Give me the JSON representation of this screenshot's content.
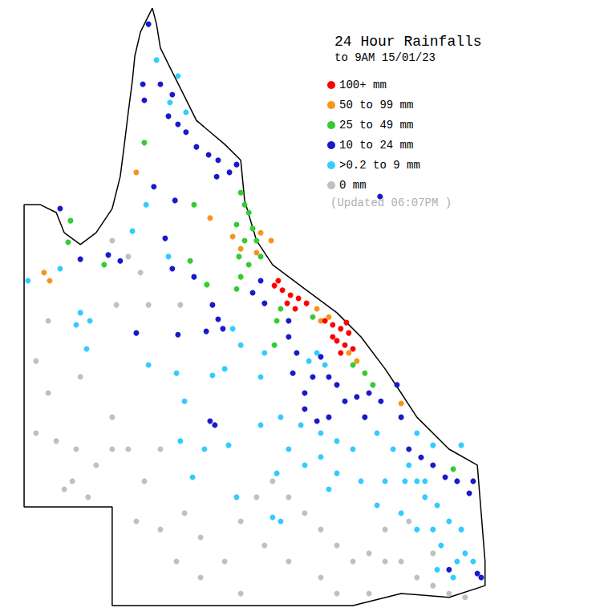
{
  "chart_data": {
    "type": "scatter",
    "title": "24 Hour Rainfalls",
    "subtitle": "to 9AM 15/01/23",
    "note": "(Updated 06:07PM )",
    "xlim": [
      137.19,
      157.89
    ],
    "ylim": [
      -29.32,
      -10.45
    ],
    "tick_labels": false,
    "grid": false,
    "outline": [
      [
        142.31,
        -10.7
      ],
      [
        141.91,
        -11.43
      ],
      [
        141.72,
        -12.17
      ],
      [
        141.64,
        -12.91
      ],
      [
        141.5,
        -13.89
      ],
      [
        141.37,
        -14.87
      ],
      [
        141.23,
        -15.86
      ],
      [
        140.96,
        -16.84
      ],
      [
        140.42,
        -17.58
      ],
      [
        139.89,
        -17.94
      ],
      [
        139.35,
        -17.58
      ],
      [
        139.08,
        -16.96
      ],
      [
        138.54,
        -16.72
      ],
      [
        138.0,
        -16.72
      ],
      [
        138.0,
        -25.98
      ],
      [
        140.96,
        -25.98
      ],
      [
        140.96,
        -29.0
      ],
      [
        149.05,
        -29.0
      ],
      [
        150.67,
        -28.63
      ],
      [
        152.28,
        -28.75
      ],
      [
        153.49,
        -28.39
      ],
      [
        153.49,
        -27.65
      ],
      [
        153.36,
        -26.17
      ],
      [
        153.23,
        -24.7
      ],
      [
        152.28,
        -24.21
      ],
      [
        151.2,
        -23.23
      ],
      [
        150.67,
        -22.49
      ],
      [
        150.13,
        -21.75
      ],
      [
        149.32,
        -20.77
      ],
      [
        148.51,
        -20.03
      ],
      [
        147.43,
        -19.3
      ],
      [
        146.35,
        -18.56
      ],
      [
        145.81,
        -17.82
      ],
      [
        145.41,
        -16.59
      ],
      [
        145.28,
        -15.36
      ],
      [
        144.74,
        -14.87
      ],
      [
        143.79,
        -14.14
      ],
      [
        143.39,
        -13.4
      ],
      [
        142.98,
        -12.66
      ],
      [
        142.58,
        -11.92
      ],
      [
        142.45,
        -11.19
      ],
      [
        142.31,
        -10.7
      ]
    ],
    "series": [
      {
        "name": "100+ mm",
        "color": "#ff0000",
        "values": [
          [
            146.41,
            -19.2
          ],
          [
            146.68,
            -19.34
          ],
          [
            146.95,
            -19.49
          ],
          [
            147.22,
            -19.59
          ],
          [
            147.49,
            -19.74
          ],
          [
            146.84,
            -19.74
          ],
          [
            147.11,
            -19.91
          ],
          [
            146.54,
            -19.05
          ],
          [
            148.11,
            -20.28
          ],
          [
            148.37,
            -20.4
          ],
          [
            148.64,
            -20.52
          ],
          [
            148.91,
            -20.65
          ],
          [
            148.51,
            -20.89
          ],
          [
            148.78,
            -21.02
          ],
          [
            149.05,
            -21.14
          ],
          [
            148.64,
            -21.26
          ],
          [
            148.37,
            -20.77
          ],
          [
            148.83,
            -20.33
          ]
        ]
      },
      {
        "name": "50 to 99 mm",
        "color": "#f7941d",
        "values": [
          [
            141.77,
            -15.73
          ],
          [
            144.25,
            -17.13
          ],
          [
            145.01,
            -17.7
          ],
          [
            145.28,
            -18.07
          ],
          [
            145.95,
            -17.58
          ],
          [
            146.3,
            -17.82
          ],
          [
            147.84,
            -19.91
          ],
          [
            147.97,
            -20.28
          ],
          [
            148.24,
            -20.16
          ],
          [
            148.91,
            -21.26
          ],
          [
            149.18,
            -21.51
          ],
          [
            150.67,
            -22.81
          ],
          [
            138.67,
            -18.8
          ],
          [
            138.86,
            -19.05
          ],
          [
            145.81,
            -18.19
          ]
        ]
      },
      {
        "name": "25 to 49 mm",
        "color": "#33cc33",
        "values": [
          [
            145.28,
            -16.35
          ],
          [
            145.41,
            -16.72
          ],
          [
            145.55,
            -16.96
          ],
          [
            145.14,
            -17.33
          ],
          [
            145.68,
            -17.45
          ],
          [
            145.81,
            -17.82
          ],
          [
            145.41,
            -17.82
          ],
          [
            145.22,
            -18.31
          ],
          [
            145.95,
            -18.31
          ],
          [
            145.55,
            -18.56
          ],
          [
            142.04,
            -14.82
          ],
          [
            143.71,
            -16.72
          ],
          [
            143.58,
            -18.44
          ],
          [
            144.14,
            -19.17
          ],
          [
            145.28,
            -18.93
          ],
          [
            145.14,
            -19.3
          ],
          [
            146.62,
            -19.91
          ],
          [
            146.49,
            -20.28
          ],
          [
            147.7,
            -20.16
          ],
          [
            149.05,
            -21.63
          ],
          [
            149.45,
            -21.88
          ],
          [
            149.72,
            -22.24
          ],
          [
            146.41,
            -21.02
          ],
          [
            152.42,
            -24.82
          ],
          [
            140.69,
            -18.56
          ],
          [
            139.56,
            -17.21
          ],
          [
            139.48,
            -17.87
          ]
        ]
      },
      {
        "name": "10 to 24 mm",
        "color": "#1a1acc",
        "values": [
          [
            141.99,
            -13.03
          ],
          [
            142.04,
            -13.52
          ],
          [
            142.58,
            -13.03
          ],
          [
            142.98,
            -13.35
          ],
          [
            142.85,
            -14.01
          ],
          [
            143.17,
            -14.26
          ],
          [
            143.44,
            -14.5
          ],
          [
            143.79,
            -14.95
          ],
          [
            144.2,
            -15.19
          ],
          [
            144.52,
            -15.36
          ],
          [
            144.47,
            -15.86
          ],
          [
            144.9,
            -15.73
          ],
          [
            145.14,
            -15.49
          ],
          [
            142.36,
            -16.17
          ],
          [
            142.74,
            -17.75
          ],
          [
            143.07,
            -16.59
          ],
          [
            143.71,
            -18.93
          ],
          [
            144.33,
            -19.79
          ],
          [
            144.52,
            -20.23
          ],
          [
            144.68,
            -20.52
          ],
          [
            144.12,
            -20.6
          ],
          [
            143.17,
            -20.7
          ],
          [
            141.77,
            -20.65
          ],
          [
            139.89,
            -18.39
          ],
          [
            140.83,
            -18.26
          ],
          [
            139.21,
            -16.84
          ],
          [
            141.23,
            -18.44
          ],
          [
            142.98,
            -18.68
          ],
          [
            146.08,
            -19.74
          ],
          [
            145.68,
            -19.42
          ],
          [
            145.95,
            -19.05
          ],
          [
            146.89,
            -20.28
          ],
          [
            146.89,
            -20.77
          ],
          [
            147.16,
            -21.26
          ],
          [
            147.03,
            -21.88
          ],
          [
            147.43,
            -22.49
          ],
          [
            147.7,
            -22.0
          ],
          [
            147.97,
            -21.38
          ],
          [
            148.24,
            -22.0
          ],
          [
            148.51,
            -22.24
          ],
          [
            148.78,
            -22.74
          ],
          [
            149.18,
            -22.61
          ],
          [
            149.59,
            -22.49
          ],
          [
            147.43,
            -22.98
          ],
          [
            147.84,
            -23.35
          ],
          [
            148.24,
            -23.23
          ],
          [
            149.45,
            -23.23
          ],
          [
            149.99,
            -22.74
          ],
          [
            150.53,
            -22.24
          ],
          [
            150.67,
            -23.23
          ],
          [
            150.93,
            -24.21
          ],
          [
            151.34,
            -24.46
          ],
          [
            151.74,
            -24.7
          ],
          [
            152.15,
            -25.07
          ],
          [
            152.55,
            -25.19
          ],
          [
            152.96,
            -25.56
          ],
          [
            153.09,
            -25.19
          ],
          [
            152.28,
            -27.9
          ],
          [
            153.23,
            -28.02
          ],
          [
            153.36,
            -28.14
          ],
          [
            144.25,
            -23.35
          ],
          [
            144.41,
            -23.47
          ],
          [
            149.96,
            -16.47
          ],
          [
            142.18,
            -11.19
          ]
        ]
      },
      {
        "name": ">0.2 to 9 mm",
        "color": "#33ccff",
        "values": [
          [
            142.45,
            -12.29
          ],
          [
            143.17,
            -12.78
          ],
          [
            142.9,
            -13.59
          ],
          [
            143.44,
            -13.89
          ],
          [
            142.1,
            -16.72
          ],
          [
            141.64,
            -17.53
          ],
          [
            142.85,
            -18.31
          ],
          [
            139.89,
            -20.03
          ],
          [
            140.21,
            -20.28
          ],
          [
            139.75,
            -20.4
          ],
          [
            140.1,
            -21.14
          ],
          [
            139.21,
            -18.68
          ],
          [
            138.13,
            -19.05
          ],
          [
            142.18,
            -21.63
          ],
          [
            143.12,
            -21.88
          ],
          [
            144.33,
            -21.95
          ],
          [
            145.95,
            -22.0
          ],
          [
            143.39,
            -22.74
          ],
          [
            144.87,
            -24.09
          ],
          [
            144.06,
            -24.21
          ],
          [
            143.25,
            -23.96
          ],
          [
            145.14,
            -25.68
          ],
          [
            146.35,
            -26.3
          ],
          [
            146.62,
            -26.42
          ],
          [
            143.66,
            -25.07
          ],
          [
            145.95,
            -23.47
          ],
          [
            146.62,
            -23.23
          ],
          [
            147.3,
            -23.47
          ],
          [
            147.97,
            -23.72
          ],
          [
            148.51,
            -23.96
          ],
          [
            149.05,
            -24.21
          ],
          [
            149.86,
            -23.72
          ],
          [
            150.4,
            -24.21
          ],
          [
            150.93,
            -24.7
          ],
          [
            151.2,
            -25.19
          ],
          [
            151.47,
            -25.68
          ],
          [
            151.88,
            -25.93
          ],
          [
            152.28,
            -26.42
          ],
          [
            152.69,
            -26.67
          ],
          [
            152.82,
            -27.4
          ],
          [
            153.09,
            -27.65
          ],
          [
            152.55,
            -27.65
          ],
          [
            152.42,
            -28.14
          ],
          [
            151.88,
            -27.9
          ],
          [
            152.69,
            -24.09
          ],
          [
            150.67,
            -26.17
          ],
          [
            149.86,
            -25.93
          ],
          [
            149.32,
            -25.19
          ],
          [
            148.51,
            -24.95
          ],
          [
            150.13,
            -25.19
          ],
          [
            151.2,
            -26.67
          ],
          [
            152.01,
            -27.16
          ],
          [
            147.97,
            -24.45
          ],
          [
            148.24,
            -25.44
          ],
          [
            147.43,
            -24.7
          ],
          [
            146.89,
            -24.21
          ],
          [
            146.49,
            -24.95
          ],
          [
            145.01,
            -20.52
          ],
          [
            145.28,
            -21.02
          ],
          [
            144.74,
            -21.75
          ],
          [
            146.08,
            -21.26
          ],
          [
            147.84,
            -21.26
          ],
          [
            148.11,
            -21.63
          ],
          [
            147.57,
            -21.51
          ],
          [
            151.2,
            -23.72
          ],
          [
            151.74,
            -24.09
          ],
          [
            151.47,
            -25.19
          ],
          [
            150.8,
            -25.19
          ],
          [
            151.74,
            -26.67
          ]
        ]
      },
      {
        "name": "0 mm",
        "color": "#c0c0c0",
        "values": [
          [
            138.4,
            -21.51
          ],
          [
            138.81,
            -22.49
          ],
          [
            139.08,
            -23.96
          ],
          [
            139.75,
            -24.21
          ],
          [
            140.15,
            -25.68
          ],
          [
            139.62,
            -25.19
          ],
          [
            140.96,
            -23.23
          ],
          [
            141.5,
            -24.21
          ],
          [
            142.04,
            -25.19
          ],
          [
            141.77,
            -26.42
          ],
          [
            142.58,
            -26.67
          ],
          [
            143.12,
            -27.65
          ],
          [
            143.93,
            -28.14
          ],
          [
            144.74,
            -27.65
          ],
          [
            145.28,
            -26.42
          ],
          [
            145.81,
            -25.68
          ],
          [
            146.35,
            -25.19
          ],
          [
            146.89,
            -25.68
          ],
          [
            147.43,
            -26.17
          ],
          [
            147.97,
            -26.67
          ],
          [
            148.51,
            -27.16
          ],
          [
            149.05,
            -27.65
          ],
          [
            149.59,
            -27.4
          ],
          [
            150.13,
            -26.67
          ],
          [
            150.67,
            -27.65
          ],
          [
            151.2,
            -28.14
          ],
          [
            151.74,
            -28.39
          ],
          [
            152.28,
            -28.63
          ],
          [
            151.74,
            -27.4
          ],
          [
            150.93,
            -26.42
          ],
          [
            150.13,
            -27.65
          ],
          [
            146.89,
            -27.65
          ],
          [
            146.08,
            -27.16
          ],
          [
            145.28,
            -28.63
          ],
          [
            143.93,
            -26.91
          ],
          [
            140.96,
            -24.21
          ],
          [
            140.42,
            -24.7
          ],
          [
            142.58,
            -24.21
          ],
          [
            143.39,
            -26.17
          ],
          [
            147.97,
            -28.14
          ],
          [
            148.51,
            -28.63
          ],
          [
            149.59,
            -28.63
          ],
          [
            152.82,
            -28.75
          ],
          [
            140.96,
            -17.82
          ],
          [
            141.5,
            -18.31
          ],
          [
            141.1,
            -19.79
          ],
          [
            141.91,
            -18.8
          ],
          [
            142.18,
            -19.79
          ],
          [
            143.25,
            -19.79
          ],
          [
            138.81,
            -20.28
          ],
          [
            139.89,
            -21.99
          ],
          [
            138.4,
            -23.72
          ],
          [
            139.35,
            -25.44
          ]
        ]
      }
    ]
  }
}
